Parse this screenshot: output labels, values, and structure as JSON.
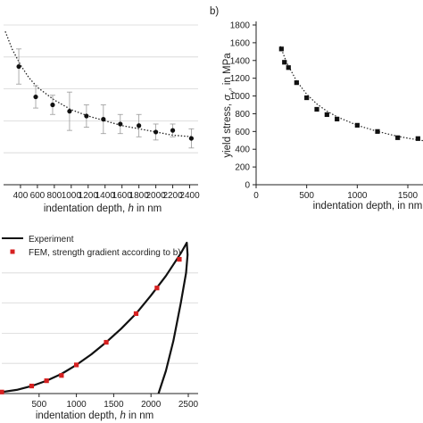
{
  "chart_data": [
    {
      "id": "a",
      "type": "scatter",
      "panel_label": "",
      "xlabel_text": "indentation depth, ",
      "xlabel_var": "h",
      "xlabel_unit": " in nm",
      "ylabel": "",
      "xlim": [
        200,
        2500
      ],
      "x_ticks": [
        400,
        600,
        800,
        1000,
        1200,
        1400,
        1600,
        1800,
        2000,
        2200,
        2400
      ],
      "x_tick_labels": [
        "400",
        "600",
        "800",
        "1000",
        "1200",
        "1400",
        "1600",
        "1800",
        "2000",
        "2200",
        "2400"
      ],
      "ylim": [
        0,
        1
      ],
      "grid": true,
      "series": [
        {
          "style": "points-with-error-bars",
          "x": [
            380,
            580,
            780,
            980,
            1180,
            1380,
            1580,
            1800,
            2000,
            2200,
            2420
          ],
          "y": [
            0.74,
            0.55,
            0.5,
            0.46,
            0.43,
            0.41,
            0.38,
            0.37,
            0.33,
            0.34,
            0.29
          ],
          "err": [
            0.11,
            0.07,
            0.06,
            0.12,
            0.07,
            0.09,
            0.06,
            0.07,
            0.05,
            0.04,
            0.06
          ]
        },
        {
          "style": "dotted-fit",
          "x": [
            220,
            300,
            400,
            500,
            600,
            800,
            1000,
            1200,
            1400,
            1600,
            1800,
            2000,
            2200,
            2440
          ],
          "y": [
            0.96,
            0.85,
            0.75,
            0.67,
            0.61,
            0.53,
            0.47,
            0.43,
            0.4,
            0.37,
            0.35,
            0.33,
            0.31,
            0.3
          ]
        }
      ]
    },
    {
      "id": "b",
      "type": "scatter",
      "panel_label": "b)",
      "xlabel_text": "indentation depth,",
      "xlabel_unit": " in nm",
      "ylabel_text": "yield stress, ",
      "ylabel_var": "σ",
      "ylabel_sub": "y",
      "ylabel_unit": ", in MPa",
      "xlim": [
        0,
        1800
      ],
      "x_ticks": [
        0,
        500,
        1000,
        1500
      ],
      "x_tick_labels": [
        "0",
        "500",
        "1000",
        "1500"
      ],
      "ylim": [
        0,
        1800
      ],
      "y_ticks": [
        0,
        200,
        400,
        600,
        800,
        1000,
        1200,
        1400,
        1600,
        1800
      ],
      "y_tick_labels": [
        "0",
        "200",
        "400",
        "600",
        "800",
        "1000",
        "1200",
        "1400",
        "1600",
        "1800"
      ],
      "series": [
        {
          "style": "square-points",
          "x": [
            250,
            280,
            320,
            400,
            500,
            600,
            700,
            800,
            1000,
            1200,
            1400,
            1600,
            1760
          ],
          "y": [
            1530,
            1380,
            1320,
            1150,
            980,
            850,
            790,
            740,
            670,
            600,
            530,
            520,
            480
          ]
        },
        {
          "style": "dotted-fit",
          "x": [
            240,
            300,
            400,
            500,
            600,
            700,
            800,
            1000,
            1200,
            1400,
            1600,
            1800
          ],
          "y": [
            1560,
            1380,
            1170,
            1020,
            910,
            830,
            765,
            670,
            600,
            545,
            505,
            475
          ]
        }
      ]
    },
    {
      "id": "c",
      "type": "line",
      "xlabel_text": "indentation depth, ",
      "xlabel_var": "h",
      "xlabel_unit": " in nm",
      "xlim": [
        0,
        2700
      ],
      "x_ticks": [
        500,
        1000,
        1500,
        2000,
        2500
      ],
      "x_tick_labels": [
        "500",
        "1000",
        "1500",
        "2000",
        "2500"
      ],
      "ylim": [
        0,
        1
      ],
      "grid": true,
      "legend": [
        "Experiment",
        "FEM, strength gradient according to b)"
      ],
      "legend_placement": "top-left",
      "series": [
        {
          "name": "Experiment",
          "style": "solid",
          "x": [
            0,
            200,
            400,
            600,
            800,
            1000,
            1200,
            1400,
            1600,
            1800,
            2000,
            2200,
            2400,
            2480,
            2490,
            2470,
            2400,
            2300,
            2200,
            2100
          ],
          "y": [
            0.01,
            0.024,
            0.05,
            0.085,
            0.13,
            0.19,
            0.26,
            0.34,
            0.43,
            0.53,
            0.65,
            0.78,
            0.93,
            1.0,
            0.92,
            0.8,
            0.6,
            0.35,
            0.15,
            0.0
          ]
        },
        {
          "name": "FEM, strength gradient according to b)",
          "style": "square-points",
          "color": "#d62020",
          "x": [
            0,
            400,
            600,
            800,
            1000,
            1400,
            1800,
            2080,
            2380
          ],
          "y": [
            0.01,
            0.05,
            0.085,
            0.12,
            0.19,
            0.34,
            0.53,
            0.7,
            0.89
          ]
        }
      ]
    }
  ]
}
